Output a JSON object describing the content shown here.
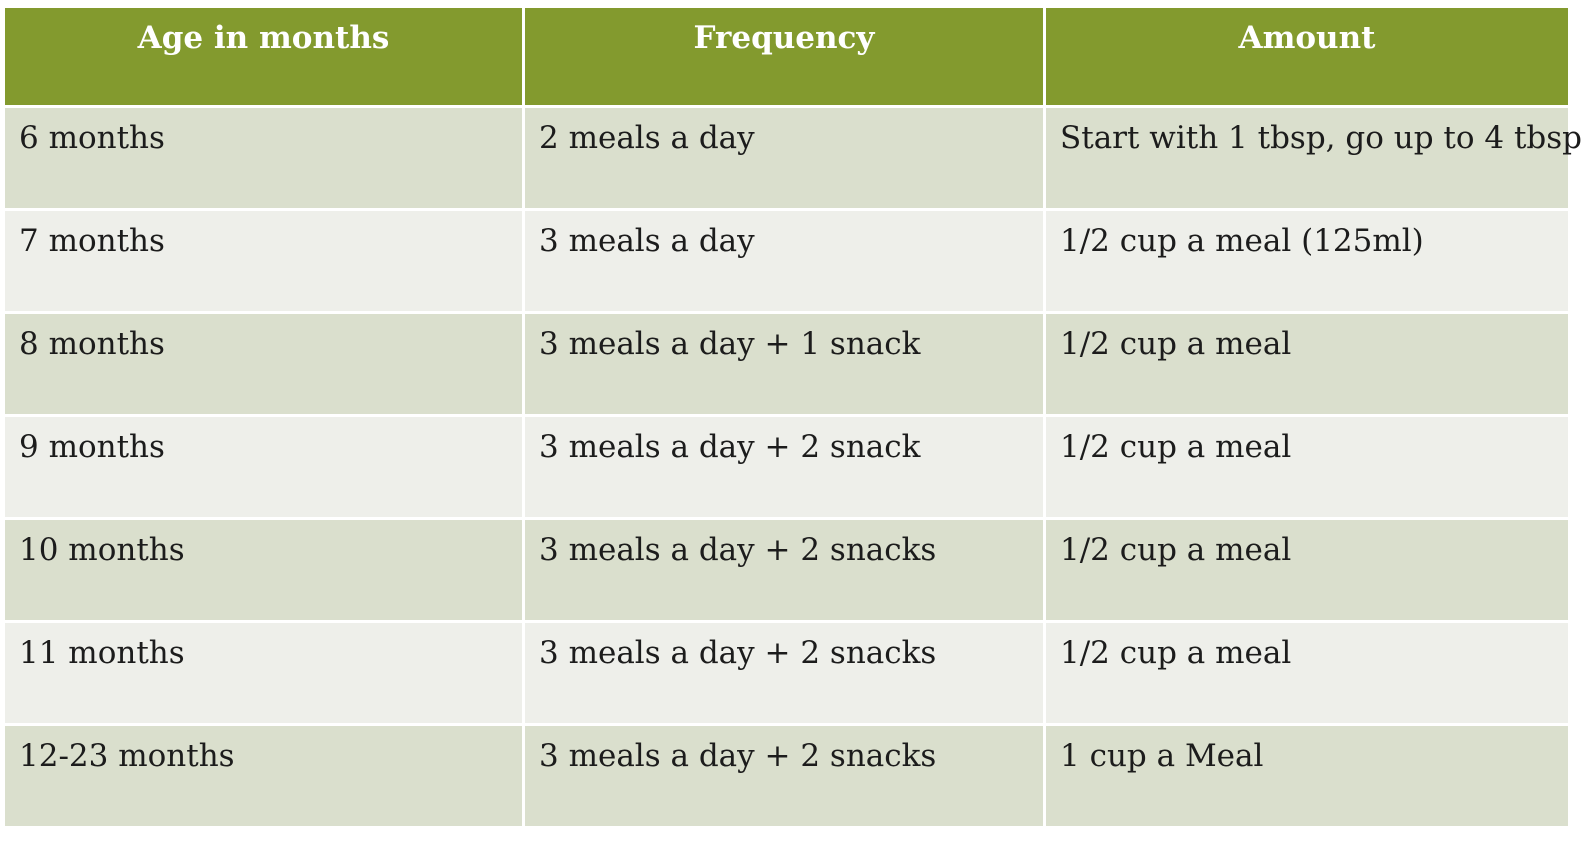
{
  "colors": {
    "header_bg": "#839a2e",
    "row_odd_bg": "#dadfcd",
    "row_even_bg": "#eeefea",
    "header_text": "#ffffff",
    "body_text": "#1c1c1c"
  },
  "table": {
    "headers": [
      "Age in months",
      "Frequency",
      "Amount"
    ],
    "rows": [
      [
        "6 months",
        "2 meals a day",
        "Start with 1 tbsp, go up to 4 tbsp"
      ],
      [
        "7 months",
        "3 meals a day",
        "1/2 cup a meal (125ml)"
      ],
      [
        "8 months",
        "3 meals a day + 1 snack",
        "1/2 cup a meal"
      ],
      [
        "9 months",
        "3 meals a day + 2 snack",
        "1/2 cup a meal"
      ],
      [
        "10 months",
        "3 meals a day + 2 snacks",
        "1/2 cup a meal"
      ],
      [
        "11 months",
        "3 meals a day + 2 snacks",
        "1/2 cup a meal"
      ],
      [
        "12-23 months",
        "3 meals a day + 2 snacks",
        "1 cup a Meal"
      ]
    ]
  }
}
